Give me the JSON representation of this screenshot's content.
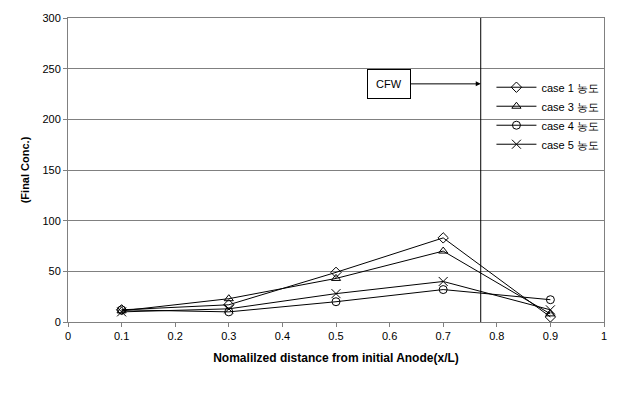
{
  "chart_data": {
    "type": "line",
    "x_label": "Nomalilzed distance from initial Anode(x/L)",
    "y_label": "(Final Conc.)",
    "x": [
      0.1,
      0.3,
      0.5,
      0.7,
      0.9
    ],
    "series": [
      {
        "name": "case 1 농도",
        "color": "#000000",
        "marker": "diamond",
        "values": [
          12,
          17,
          49,
          83,
          5
        ]
      },
      {
        "name": "case 3 농도",
        "color": "#000000",
        "marker": "triangle",
        "values": [
          11,
          23,
          43,
          70,
          8
        ]
      },
      {
        "name": "case 4 농도",
        "color": "#000000",
        "marker": "circle",
        "values": [
          12,
          10,
          20,
          32,
          22
        ]
      },
      {
        "name": "case 5 농도",
        "color": "#000000",
        "marker": "x",
        "values": [
          10,
          13,
          28,
          40,
          12
        ]
      }
    ],
    "xlim": [
      0,
      1
    ],
    "xticks": [
      0,
      0.1,
      0.2,
      0.3,
      0.4,
      0.5,
      0.6,
      0.7,
      0.8,
      0.9,
      1
    ],
    "ylim": [
      0,
      300
    ],
    "yticks": [
      0,
      50,
      100,
      150,
      200,
      250,
      300
    ],
    "grid": true,
    "legend": "right",
    "annotations": [
      {
        "text": "CFW",
        "x": 0.77,
        "y": 235
      }
    ]
  }
}
